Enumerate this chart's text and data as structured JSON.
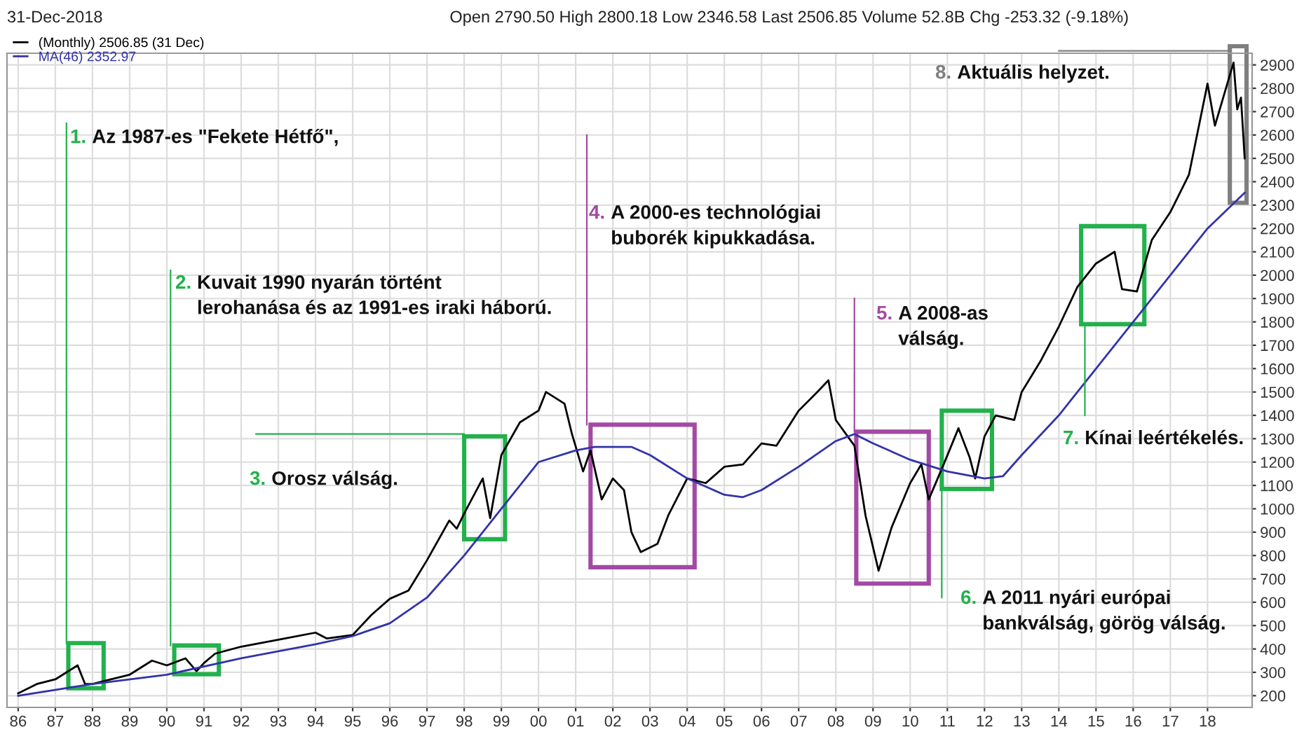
{
  "chart_data": {
    "type": "line",
    "legend": "top left",
    "grid": true,
    "xlim": [
      1985.7,
      2019.2
    ],
    "xticks": [
      {
        "value": 1986,
        "label": "86"
      },
      {
        "value": 1987,
        "label": "87"
      },
      {
        "value": 1988,
        "label": "88"
      },
      {
        "value": 1989,
        "label": "89"
      },
      {
        "value": 1990,
        "label": "90"
      },
      {
        "value": 1991,
        "label": "91"
      },
      {
        "value": 1992,
        "label": "92"
      },
      {
        "value": 1993,
        "label": "93"
      },
      {
        "value": 1994,
        "label": "94"
      },
      {
        "value": 1995,
        "label": "95"
      },
      {
        "value": 1996,
        "label": "96"
      },
      {
        "value": 1997,
        "label": "97"
      },
      {
        "value": 1998,
        "label": "98"
      },
      {
        "value": 1999,
        "label": "99"
      },
      {
        "value": 2000,
        "label": "00"
      },
      {
        "value": 2001,
        "label": "01"
      },
      {
        "value": 2002,
        "label": "02"
      },
      {
        "value": 2003,
        "label": "03"
      },
      {
        "value": 2004,
        "label": "04"
      },
      {
        "value": 2005,
        "label": "05"
      },
      {
        "value": 2006,
        "label": "06"
      },
      {
        "value": 2007,
        "label": "07"
      },
      {
        "value": 2008,
        "label": "08"
      },
      {
        "value": 2009,
        "label": "09"
      },
      {
        "value": 2010,
        "label": "10"
      },
      {
        "value": 2011,
        "label": "11"
      },
      {
        "value": 2012,
        "label": "12"
      },
      {
        "value": 2013,
        "label": "13"
      },
      {
        "value": 2014,
        "label": "14"
      },
      {
        "value": 2015,
        "label": "15"
      },
      {
        "value": 2016,
        "label": "16"
      },
      {
        "value": 2017,
        "label": "17"
      },
      {
        "value": 2018,
        "label": "18"
      }
    ],
    "ylim": [
      150,
      2950
    ],
    "yticks": [
      200,
      300,
      400,
      500,
      600,
      700,
      800,
      900,
      1000,
      1100,
      1200,
      1300,
      1400,
      1500,
      1600,
      1700,
      1800,
      1900,
      2000,
      2100,
      2200,
      2300,
      2400,
      2500,
      2600,
      2700,
      2800,
      2900
    ],
    "series": [
      {
        "name": "(Monthly) 2506.85 (31 Dec)",
        "color": "#000000",
        "x": [
          1986.0,
          1986.5,
          1987.0,
          1987.6,
          1987.8,
          1988.0,
          1988.5,
          1989.0,
          1989.6,
          1990.0,
          1990.5,
          1990.8,
          1991.0,
          1991.3,
          1992.0,
          1993.0,
          1994.0,
          1994.3,
          1995.0,
          1995.5,
          1996.0,
          1996.5,
          1997.0,
          1997.6,
          1997.8,
          1998.0,
          1998.5,
          1998.7,
          1999.0,
          1999.5,
          2000.0,
          2000.2,
          2000.7,
          2000.9,
          2001.2,
          2001.4,
          2001.7,
          2002.0,
          2002.3,
          2002.5,
          2002.75,
          2003.2,
          2003.5,
          2004.0,
          2004.5,
          2005.0,
          2005.5,
          2006.0,
          2006.4,
          2007.0,
          2007.5,
          2007.8,
          2008.0,
          2008.5,
          2008.8,
          2009.15,
          2009.5,
          2010.0,
          2010.3,
          2010.5,
          2010.9,
          2011.3,
          2011.6,
          2011.75,
          2012.0,
          2012.3,
          2012.8,
          2013.0,
          2013.5,
          2014.0,
          2014.5,
          2015.0,
          2015.5,
          2015.7,
          2016.1,
          2016.5,
          2017.0,
          2017.5,
          2018.0,
          2018.2,
          2018.7,
          2018.8,
          2018.9,
          2019.0
        ],
        "values": [
          210,
          250,
          270,
          330,
          250,
          250,
          270,
          290,
          350,
          330,
          360,
          305,
          340,
          380,
          410,
          440,
          470,
          445,
          460,
          545,
          615,
          650,
          780,
          950,
          915,
          980,
          1130,
          960,
          1230,
          1370,
          1420,
          1500,
          1450,
          1320,
          1160,
          1250,
          1040,
          1130,
          1080,
          900,
          815,
          850,
          975,
          1130,
          1110,
          1180,
          1190,
          1280,
          1270,
          1420,
          1500,
          1550,
          1380,
          1270,
          970,
          735,
          920,
          1110,
          1190,
          1040,
          1190,
          1345,
          1220,
          1130,
          1310,
          1400,
          1380,
          1500,
          1630,
          1780,
          1950,
          2050,
          2100,
          1940,
          1930,
          2150,
          2270,
          2430,
          2820,
          2640,
          2910,
          2710,
          2760,
          2500
        ]
      },
      {
        "name": "MA(46) 2352.97",
        "color": "#3333aa",
        "x": [
          1986,
          1988,
          1990,
          1992,
          1994,
          1995,
          1996,
          1997,
          1998,
          1999,
          2000,
          2001,
          2001.5,
          2002.5,
          2003,
          2004,
          2005,
          2005.5,
          2006,
          2007,
          2008,
          2008.5,
          2009,
          2010,
          2011,
          2012,
          2012.5,
          2013,
          2014,
          2015,
          2016,
          2017,
          2018,
          2019
        ],
        "values": [
          200,
          250,
          290,
          360,
          420,
          455,
          510,
          620,
          800,
          1000,
          1200,
          1250,
          1265,
          1265,
          1230,
          1130,
          1060,
          1050,
          1080,
          1180,
          1290,
          1320,
          1280,
          1210,
          1160,
          1130,
          1140,
          1230,
          1400,
          1600,
          1800,
          2000,
          2200,
          2353
        ]
      }
    ],
    "annotations": [
      "31-Dec-2018",
      "Open 2790.50 High 2800.18 Low 2346.58 Last 2506.85 Volume 52.8B Chg -253.32 (-9.18%)",
      "1. Az 1987-es \"Fekete Hétfő\",",
      "2. Kuvait 1990 nyarán történt\nlerohanása és az 1991-es iraki háború.",
      "3. Orosz válság.",
      "4. A 2000-es technológiai\nbuborék kipukkadása.",
      {
        "text": "5. A 2008-as\nválság.",
        "x": 2008.5,
        "y": 1330
      },
      "6. A 2011 nyári európai\nbankválság, görög válság.",
      "7. Kínai leértékelés.",
      "8. Aktuális helyzet."
    ]
  }
}
